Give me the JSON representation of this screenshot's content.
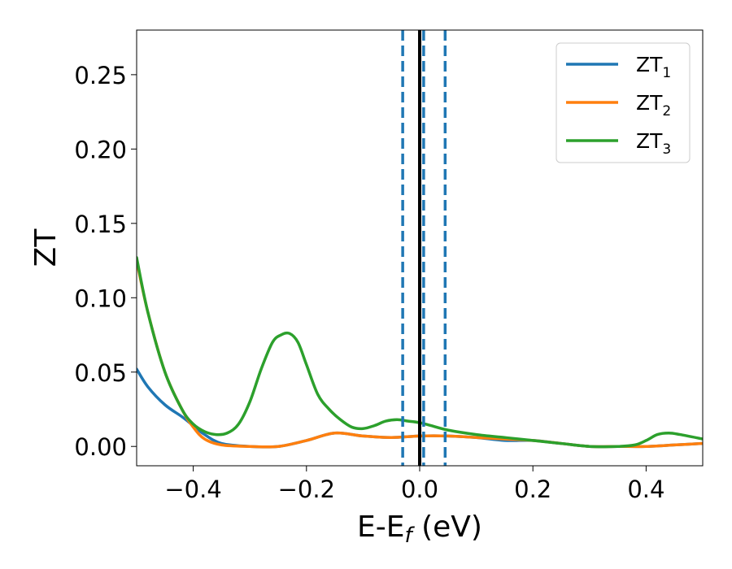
{
  "chart_data": {
    "type": "line",
    "xlabel": "E-E",
    "xlabel_sub": "f",
    "xlabel_unit": " (eV)",
    "ylabel": "ZT",
    "xlim": [
      -0.5,
      0.5
    ],
    "ylim": [
      -0.013,
      0.28
    ],
    "xticks": [
      -0.4,
      -0.2,
      0.0,
      0.2,
      0.4
    ],
    "xtick_labels": [
      "−0.4",
      "−0.2",
      "0.0",
      "0.2",
      "0.4"
    ],
    "yticks": [
      0.0,
      0.05,
      0.1,
      0.15,
      0.2,
      0.25
    ],
    "ytick_labels": [
      "0.00",
      "0.05",
      "0.10",
      "0.15",
      "0.20",
      "0.25"
    ],
    "grid": false,
    "legend_position": "top-right",
    "vertical_lines": [
      {
        "x": -0.03,
        "style": "dashed",
        "color": "#1f77b4"
      },
      {
        "x": 0.007,
        "style": "dashed",
        "color": "#1f77b4"
      },
      {
        "x": 0.045,
        "style": "dashed",
        "color": "#1f77b4"
      },
      {
        "x": 0.0,
        "style": "solid",
        "color": "#000000"
      }
    ],
    "series": [
      {
        "name": "ZT",
        "name_sub": "1",
        "color": "#1f77b4",
        "x": [
          -0.5,
          -0.48,
          -0.45,
          -0.42,
          -0.4,
          -0.38,
          -0.35,
          -0.3,
          -0.25,
          -0.2,
          -0.15,
          -0.1,
          -0.05,
          0.0,
          0.05,
          0.1,
          0.15,
          0.2,
          0.25,
          0.3,
          0.35,
          0.4,
          0.45,
          0.5
        ],
        "y": [
          0.052,
          0.04,
          0.028,
          0.02,
          0.014,
          0.008,
          0.002,
          0.0,
          0.0,
          0.004,
          0.009,
          0.007,
          0.006,
          0.007,
          0.007,
          0.006,
          0.004,
          0.004,
          0.002,
          0.0,
          0.0,
          0.0,
          0.001,
          0.002
        ]
      },
      {
        "name": "ZT",
        "name_sub": "2",
        "color": "#ff7f0e",
        "x": [
          -0.5,
          -0.48,
          -0.45,
          -0.42,
          -0.4,
          -0.38,
          -0.35,
          -0.3,
          -0.25,
          -0.2,
          -0.15,
          -0.1,
          -0.05,
          0.0,
          0.05,
          0.1,
          0.15,
          0.2,
          0.25,
          0.3,
          0.35,
          0.4,
          0.45,
          0.5
        ],
        "y": [
          0.125,
          0.09,
          0.05,
          0.025,
          0.013,
          0.005,
          0.001,
          0.0,
          0.0,
          0.004,
          0.009,
          0.007,
          0.006,
          0.007,
          0.007,
          0.006,
          0.005,
          0.004,
          0.002,
          0.0,
          0.0,
          0.0,
          0.001,
          0.002
        ]
      },
      {
        "name": "ZT",
        "name_sub": "3",
        "color": "#2ca02c",
        "x": [
          -0.5,
          -0.48,
          -0.45,
          -0.42,
          -0.4,
          -0.38,
          -0.36,
          -0.34,
          -0.32,
          -0.3,
          -0.28,
          -0.26,
          -0.245,
          -0.23,
          -0.215,
          -0.2,
          -0.18,
          -0.16,
          -0.14,
          -0.12,
          -0.1,
          -0.08,
          -0.06,
          -0.04,
          -0.02,
          0.0,
          0.02,
          0.05,
          0.1,
          0.15,
          0.2,
          0.25,
          0.3,
          0.35,
          0.38,
          0.4,
          0.42,
          0.44,
          0.46,
          0.5
        ],
        "y": [
          0.127,
          0.09,
          0.05,
          0.025,
          0.015,
          0.01,
          0.008,
          0.009,
          0.015,
          0.03,
          0.052,
          0.07,
          0.075,
          0.076,
          0.07,
          0.055,
          0.035,
          0.025,
          0.018,
          0.013,
          0.012,
          0.014,
          0.017,
          0.018,
          0.017,
          0.016,
          0.014,
          0.011,
          0.008,
          0.006,
          0.004,
          0.002,
          0.0,
          0.0,
          0.001,
          0.004,
          0.008,
          0.009,
          0.008,
          0.005
        ]
      }
    ]
  }
}
